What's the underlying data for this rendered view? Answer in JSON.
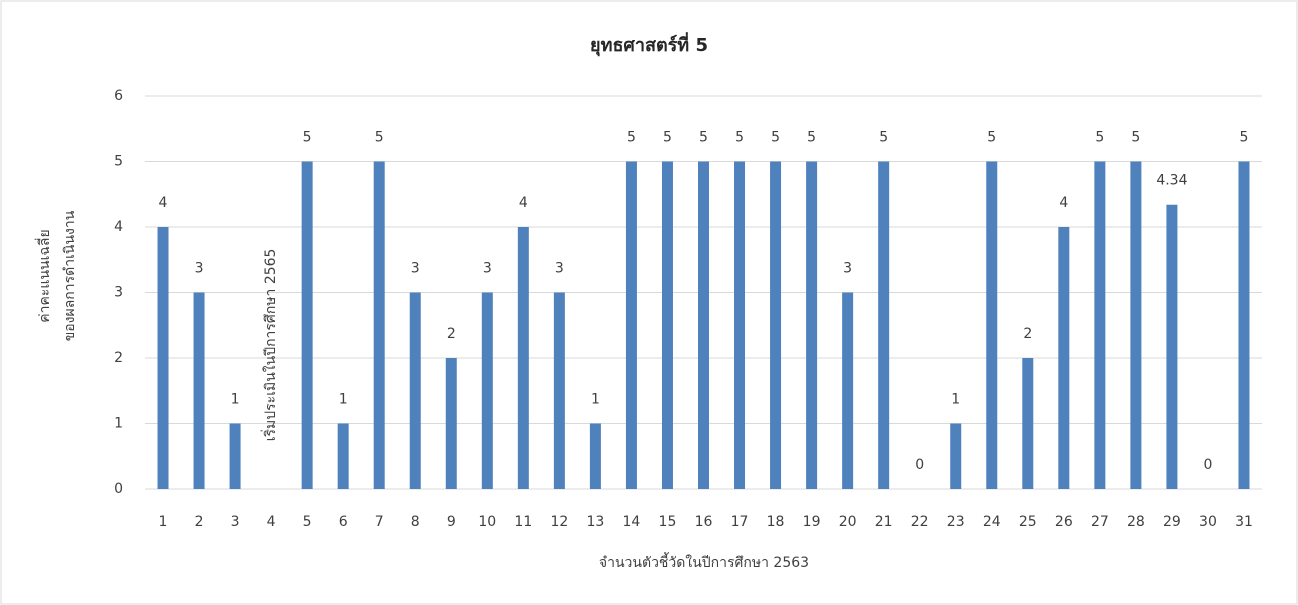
{
  "chart_data": {
    "type": "bar",
    "title": "ยุทธศาสตร์ที่ 5",
    "xlabel": "จำนวนตัวชี้วัดในปีการศึกษา 2563",
    "ylabel": [
      "ค่าคะแนนเฉลี่ย",
      "ของผลการดำเนินงาน"
    ],
    "categories": [
      "1",
      "2",
      "3",
      "4",
      "5",
      "6",
      "7",
      "8",
      "9",
      "10",
      "11",
      "12",
      "13",
      "14",
      "15",
      "16",
      "17",
      "18",
      "19",
      "20",
      "21",
      "22",
      "23",
      "24",
      "25",
      "26",
      "27",
      "28",
      "29",
      "30",
      "31"
    ],
    "values": [
      4,
      3,
      1,
      null,
      5,
      1,
      5,
      3,
      2,
      3,
      4,
      3,
      1,
      5,
      5,
      5,
      5,
      5,
      5,
      3,
      5,
      0,
      1,
      5,
      2,
      4,
      5,
      5,
      4.34,
      0,
      5
    ],
    "color": "#4f81bd",
    "ylim": [
      0,
      6
    ],
    "yticks": [
      0,
      1,
      2,
      3,
      4,
      5,
      6
    ],
    "grid": true,
    "annotations": [
      {
        "text": "เริ่มประเมินในปีการศึกษา 2565",
        "x": "4"
      }
    ]
  }
}
